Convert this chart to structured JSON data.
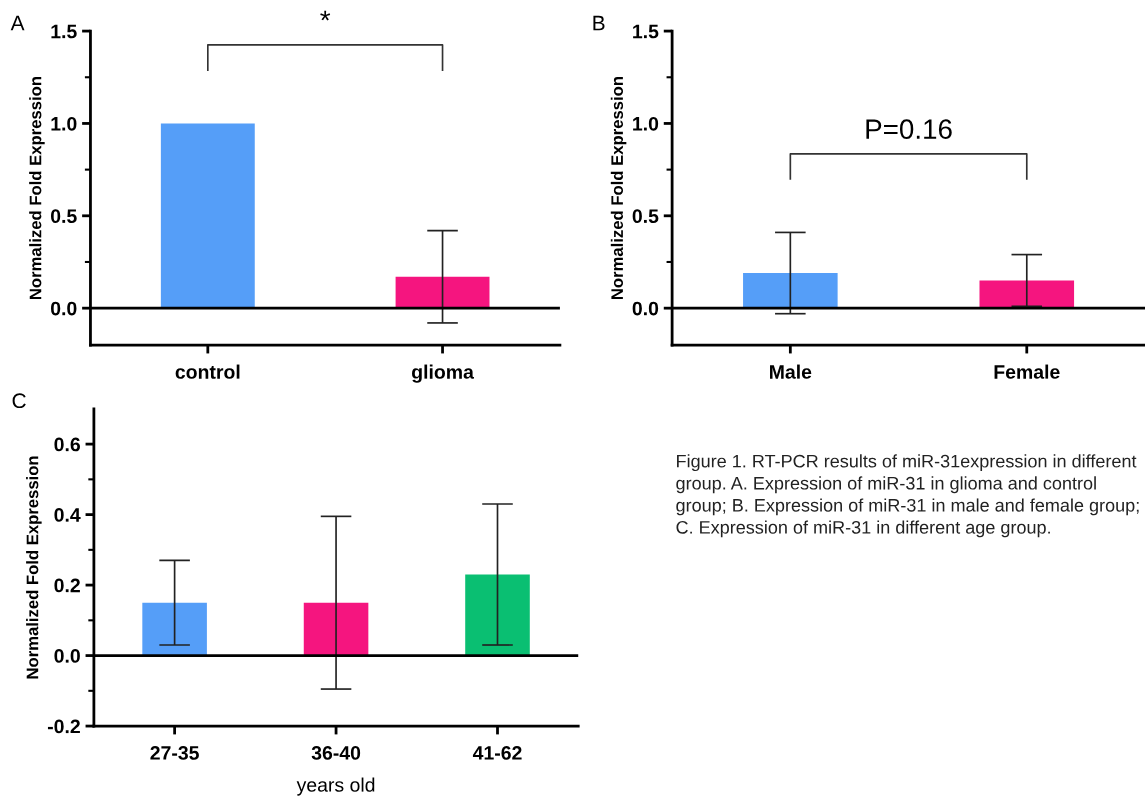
{
  "chart_data": [
    {
      "type": "bar",
      "title": "A",
      "ylabel": "Normalized Fold Expression",
      "categories": [
        "control",
        "glioma"
      ],
      "values": [
        1.0,
        0.17
      ],
      "colors": [
        "#559ef8",
        "#f5157f"
      ],
      "errors": [
        null,
        0.25
      ],
      "ylim": [
        -0.2,
        1.5
      ],
      "yticks": [
        {
          "value": 0,
          "label": "0.0"
        },
        {
          "value": 0.25,
          "label": null
        },
        0.5,
        {
          "value": 0.75,
          "label": null
        },
        {
          "value": 1,
          "label": "1.0"
        },
        {
          "value": 1.25,
          "label": null
        },
        1.5
      ],
      "ref_lines": [
        {
          "axis": "y",
          "value": 0
        }
      ],
      "annotations": [
        "*"
      ]
    },
    {
      "type": "bar",
      "title": "B",
      "ylabel": "Normalized Fold Expression",
      "categories": [
        "Male",
        "Female"
      ],
      "values": [
        0.19,
        0.15
      ],
      "colors": [
        "#559ef8",
        "#f5157f"
      ],
      "errors": [
        0.22,
        0.14
      ],
      "ylim": [
        -0.2,
        1.5
      ],
      "yticks": [
        {
          "value": 0,
          "label": "0.0"
        },
        {
          "value": 0.25,
          "label": null
        },
        0.5,
        {
          "value": 0.75,
          "label": null
        },
        {
          "value": 1,
          "label": "1.0"
        },
        {
          "value": 1.25,
          "label": null
        },
        1.5
      ],
      "ref_lines": [
        {
          "axis": "y",
          "value": 0
        }
      ],
      "annotations": [
        "P=0.16"
      ]
    },
    {
      "type": "bar",
      "title": "C",
      "ylabel": "Normalized Fold Expression",
      "xlabel": "years old",
      "categories": [
        "27-35",
        "36-40",
        "41-62"
      ],
      "values": [
        0.15,
        0.15,
        0.23
      ],
      "colors": [
        "#559ef8",
        "#f5157f",
        "#0abf72"
      ],
      "errors": [
        0.12,
        0.245,
        0.2
      ],
      "ylim": [
        -0.2,
        0.7
      ],
      "yticks": [
        -0.2,
        {
          "value": -0.1,
          "label": null
        },
        {
          "value": 0,
          "label": "0.0"
        },
        {
          "value": 0.1,
          "label": null
        },
        0.2,
        {
          "value": 0.3,
          "label": null
        },
        0.4,
        {
          "value": 0.5,
          "label": null
        },
        0.6
      ],
      "ref_lines": [
        {
          "axis": "y",
          "value": 0
        }
      ]
    },
    {
      "type": "other",
      "annotations": [
        "Figure 1. RT-PCR results of miR-31expression in different group. A. Expression of miR-31 in glioma and control group; B. Expression of miR-31 in male and female group; C. Expression of miR-31 in different age group."
      ]
    }
  ]
}
